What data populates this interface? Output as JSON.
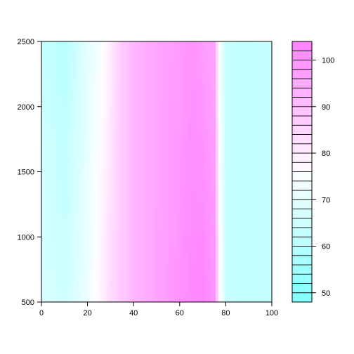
{
  "chart_data": {
    "type": "heatmap",
    "title": "",
    "xlabel": "",
    "ylabel": "",
    "xlim": [
      0,
      100
    ],
    "ylim": [
      500,
      2500
    ],
    "x_ticks": [
      "0",
      "20",
      "40",
      "60",
      "80",
      "100"
    ],
    "y_ticks": [
      "500",
      "1000",
      "1500",
      "2000",
      "2500"
    ],
    "x_tick_values": [
      0,
      20,
      40,
      60,
      80,
      100
    ],
    "y_tick_values": [
      500,
      1000,
      1500,
      2000,
      2500
    ],
    "colorbar": {
      "min": 48,
      "max": 104,
      "step": 2,
      "ticks": [
        "50",
        "60",
        "70",
        "80",
        "90",
        "100"
      ],
      "tick_values": [
        50,
        60,
        70,
        80,
        90,
        100
      ],
      "low_color": "#80ffff",
      "mid_color": "#ffffff",
      "high_color": "#ff80ff"
    },
    "color_profile": {
      "x": [
        0,
        10,
        20,
        25,
        30,
        35,
        40,
        50,
        60,
        65,
        70,
        75,
        77,
        80,
        88,
        100
      ],
      "value_bottom": [
        68,
        65,
        72,
        78,
        84,
        88,
        92,
        96,
        100,
        102,
        103,
        100,
        80,
        64,
        62,
        64
      ],
      "value_top": [
        64,
        60,
        70,
        74,
        80,
        88,
        92,
        96,
        98,
        100,
        98,
        96,
        76,
        64,
        62,
        64
      ]
    }
  }
}
